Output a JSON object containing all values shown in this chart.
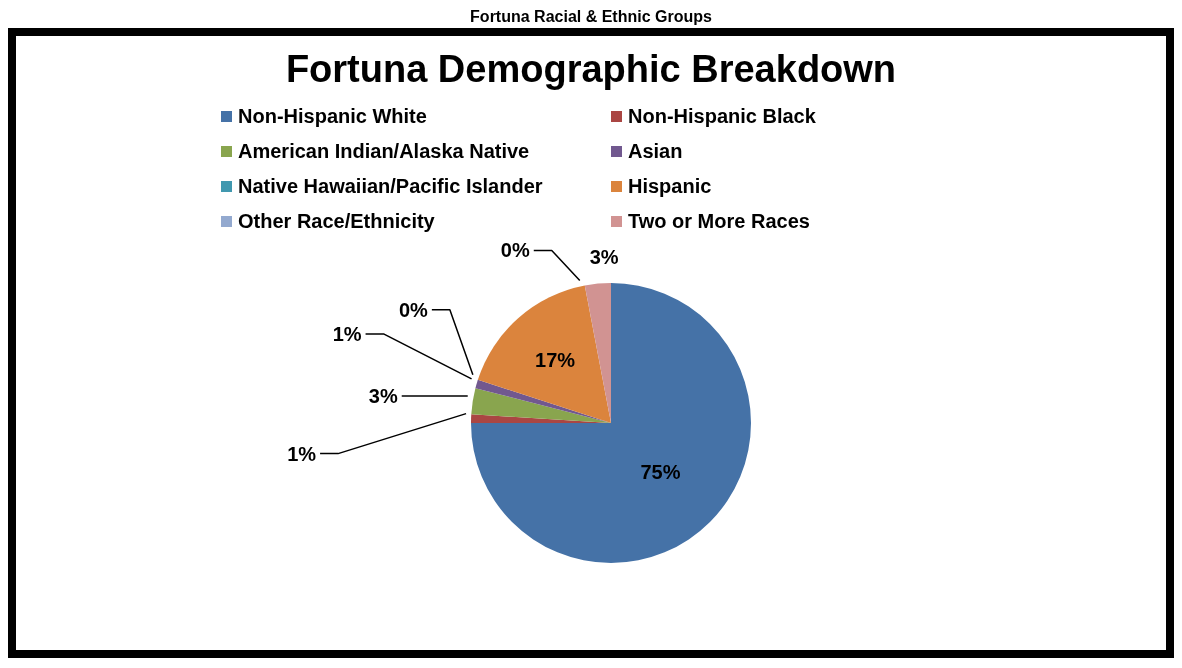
{
  "chart_data": {
    "type": "pie",
    "title": "Fortuna Demographic Breakdown",
    "annotations": [
      "Fortuna Racial & Ethnic Groups"
    ],
    "categories": [
      "Non-Hispanic White",
      "Non-Hispanic Black",
      "American Indian/Alaska Native",
      "Asian",
      "Native Hawaiian/Pacific Islander",
      "Hispanic",
      "Other Race/Ethnicity",
      "Two or More Races"
    ],
    "values": [
      75,
      1,
      3,
      1,
      0,
      17,
      0,
      3
    ],
    "value_labels": [
      "75%",
      "1%",
      "3%",
      "1%",
      "0%",
      "17%",
      "0%",
      "3%"
    ],
    "colors": [
      "#4572a7",
      "#aa4643",
      "#89a54e",
      "#71588f",
      "#4198af",
      "#db843d",
      "#93a9cf",
      "#d19392"
    ],
    "legend": "top"
  }
}
